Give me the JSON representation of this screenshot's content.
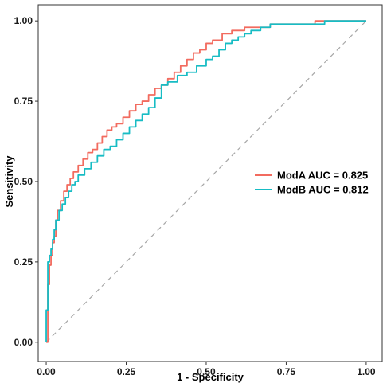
{
  "chart_data": {
    "type": "line",
    "title": "",
    "xlabel": "1 - Specificity",
    "ylabel": "Sensitivity",
    "xlim": [
      -0.025,
      1.05
    ],
    "ylim": [
      -0.06,
      1.05
    ],
    "x_ticks": [
      0,
      0.25,
      0.5,
      0.75,
      1
    ],
    "y_ticks": [
      0,
      0.25,
      0.5,
      0.75,
      1
    ],
    "x_tick_labels": [
      "0.00",
      "0.25",
      "0.50",
      "0.75",
      "1.00"
    ],
    "y_tick_labels": [
      "0.00",
      "0.25",
      "0.50",
      "0.75",
      "1.00"
    ],
    "grid": false,
    "legend_position": "right",
    "reference_line": {
      "x": [
        0,
        1
      ],
      "y": [
        0,
        1
      ],
      "style": "dashed",
      "color": "#a6a6a6"
    },
    "series": [
      {
        "name": "ModA AUC = 0.825",
        "color": "#f26b5f",
        "x": [
          0,
          0.005,
          0.005,
          0.01,
          0.01,
          0.015,
          0.015,
          0.02,
          0.02,
          0.025,
          0.025,
          0.03,
          0.03,
          0.035,
          0.035,
          0.045,
          0.045,
          0.055,
          0.055,
          0.065,
          0.065,
          0.075,
          0.075,
          0.085,
          0.085,
          0.1,
          0.1,
          0.115,
          0.115,
          0.13,
          0.13,
          0.145,
          0.145,
          0.16,
          0.16,
          0.175,
          0.175,
          0.19,
          0.19,
          0.205,
          0.205,
          0.22,
          0.22,
          0.24,
          0.24,
          0.26,
          0.26,
          0.28,
          0.28,
          0.3,
          0.3,
          0.32,
          0.32,
          0.34,
          0.34,
          0.36,
          0.36,
          0.38,
          0.38,
          0.4,
          0.4,
          0.42,
          0.42,
          0.44,
          0.44,
          0.46,
          0.46,
          0.48,
          0.48,
          0.5,
          0.5,
          0.52,
          0.52,
          0.55,
          0.55,
          0.58,
          0.58,
          0.62,
          0.62,
          0.66,
          0.66,
          0.7,
          0.7,
          0.84,
          0.84,
          1.0
        ],
        "y": [
          0,
          0,
          0.18,
          0.18,
          0.24,
          0.24,
          0.27,
          0.27,
          0.31,
          0.31,
          0.33,
          0.33,
          0.38,
          0.38,
          0.41,
          0.41,
          0.44,
          0.44,
          0.47,
          0.47,
          0.49,
          0.49,
          0.51,
          0.51,
          0.53,
          0.53,
          0.55,
          0.55,
          0.57,
          0.57,
          0.59,
          0.59,
          0.6,
          0.6,
          0.62,
          0.62,
          0.64,
          0.64,
          0.66,
          0.66,
          0.67,
          0.67,
          0.68,
          0.68,
          0.7,
          0.7,
          0.72,
          0.72,
          0.74,
          0.74,
          0.75,
          0.75,
          0.77,
          0.77,
          0.79,
          0.79,
          0.8,
          0.8,
          0.82,
          0.82,
          0.84,
          0.84,
          0.86,
          0.86,
          0.88,
          0.88,
          0.9,
          0.9,
          0.91,
          0.91,
          0.93,
          0.93,
          0.94,
          0.94,
          0.96,
          0.96,
          0.97,
          0.97,
          0.98,
          0.98,
          0.98,
          0.98,
          0.99,
          0.99,
          1.0,
          1.0
        ]
      },
      {
        "name": "ModB AUC = 0.812",
        "color": "#17bcc4",
        "x": [
          0,
          0,
          0.005,
          0.005,
          0.01,
          0.01,
          0.015,
          0.015,
          0.02,
          0.02,
          0.025,
          0.025,
          0.03,
          0.03,
          0.04,
          0.04,
          0.05,
          0.05,
          0.06,
          0.06,
          0.07,
          0.07,
          0.08,
          0.08,
          0.09,
          0.09,
          0.1,
          0.1,
          0.12,
          0.12,
          0.14,
          0.14,
          0.16,
          0.16,
          0.18,
          0.18,
          0.2,
          0.2,
          0.22,
          0.22,
          0.24,
          0.24,
          0.26,
          0.26,
          0.28,
          0.28,
          0.3,
          0.3,
          0.32,
          0.32,
          0.34,
          0.34,
          0.36,
          0.36,
          0.38,
          0.38,
          0.41,
          0.41,
          0.44,
          0.44,
          0.47,
          0.47,
          0.5,
          0.5,
          0.52,
          0.52,
          0.54,
          0.54,
          0.56,
          0.56,
          0.58,
          0.58,
          0.6,
          0.6,
          0.62,
          0.62,
          0.64,
          0.64,
          0.67,
          0.67,
          0.7,
          0.7,
          0.87,
          0.87,
          1.0
        ],
        "y": [
          0,
          0.1,
          0.1,
          0.25,
          0.25,
          0.27,
          0.27,
          0.29,
          0.29,
          0.32,
          0.32,
          0.35,
          0.35,
          0.38,
          0.38,
          0.41,
          0.41,
          0.43,
          0.43,
          0.45,
          0.45,
          0.47,
          0.47,
          0.49,
          0.49,
          0.5,
          0.5,
          0.52,
          0.52,
          0.54,
          0.54,
          0.56,
          0.56,
          0.58,
          0.58,
          0.6,
          0.6,
          0.61,
          0.61,
          0.63,
          0.63,
          0.65,
          0.65,
          0.67,
          0.67,
          0.69,
          0.69,
          0.71,
          0.71,
          0.73,
          0.73,
          0.76,
          0.76,
          0.8,
          0.8,
          0.81,
          0.81,
          0.83,
          0.83,
          0.84,
          0.84,
          0.86,
          0.86,
          0.88,
          0.88,
          0.89,
          0.89,
          0.91,
          0.91,
          0.93,
          0.93,
          0.94,
          0.94,
          0.95,
          0.95,
          0.96,
          0.96,
          0.97,
          0.97,
          0.98,
          0.98,
          0.99,
          0.99,
          1.0,
          1.0
        ]
      }
    ]
  }
}
